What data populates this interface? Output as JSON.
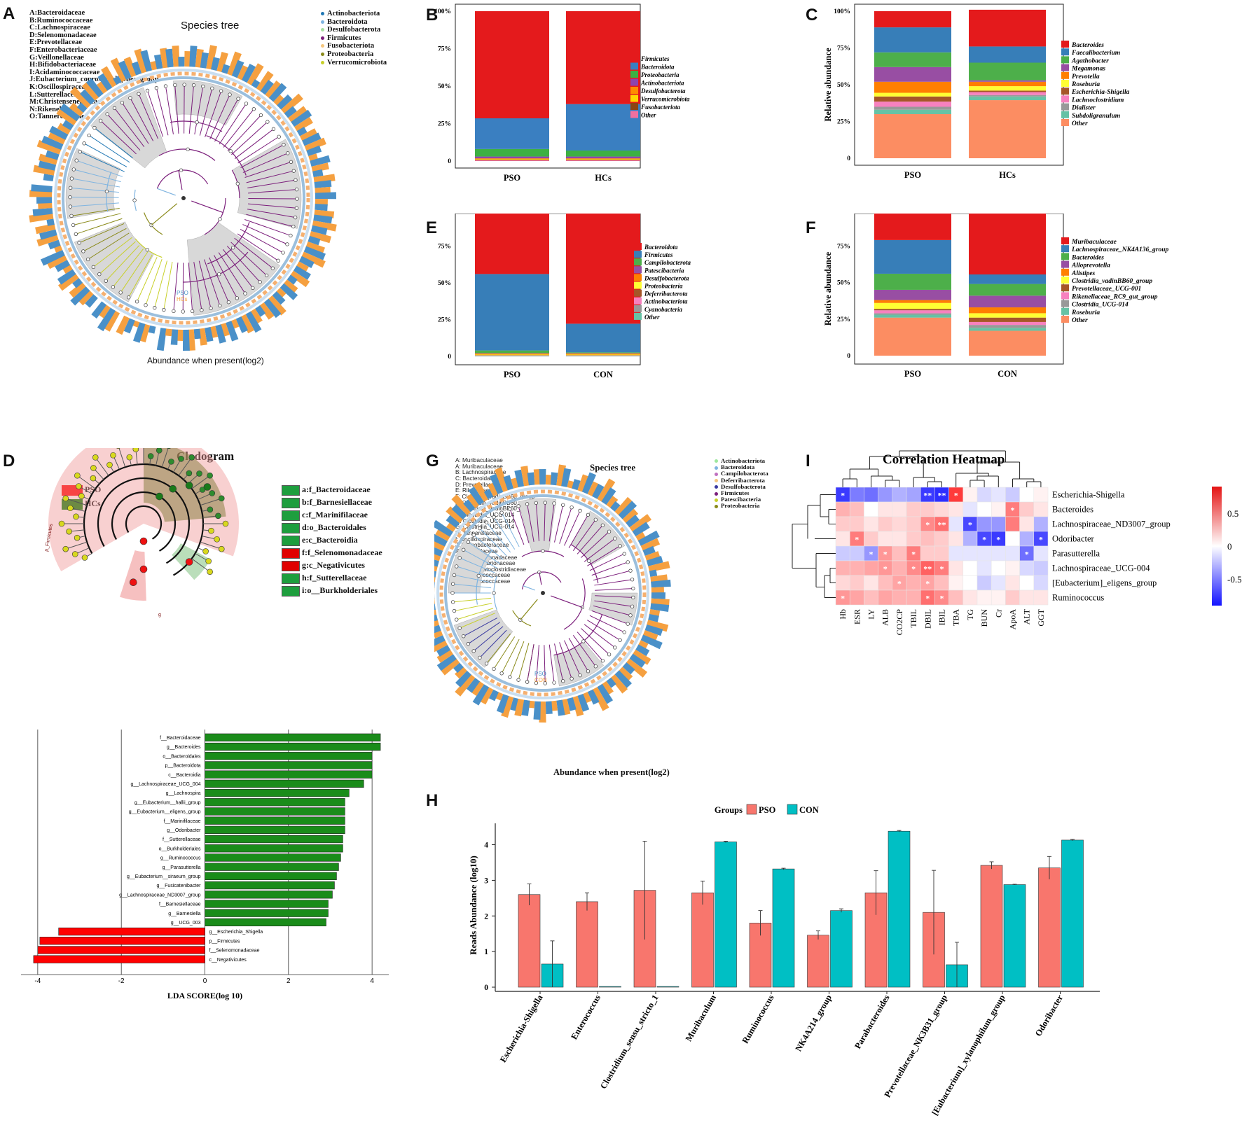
{
  "panel_labels": {
    "A": "A",
    "B": "B",
    "C": "C",
    "D": "D",
    "E": "E",
    "F": "F",
    "G": "G",
    "H": "H",
    "I": "I"
  },
  "panel_a": {
    "title": "Species tree",
    "footer": "Abundance when present(log2)",
    "group_pso": "PSO",
    "group_hcs": "HCs",
    "family_key": [
      "A:Bacteroidaceae",
      "B:Ruminococcaceae",
      "C:Lachnospiraceae",
      "D:Selenomonadaceae",
      "E:Prevotellaceae",
      "F:Enterobacteriaceae",
      "G:Veillonellaceae",
      "H:Bifidobacteriaceae",
      "I:Acidaminococcaceae",
      "J:Eubacterium_coprostanoligenes_group",
      "K:Oscillospiraceae",
      "L:Sutterellaceae",
      "M:Christensenellaceae",
      "N:Rikenellaceae",
      "O:Tannerellaceae"
    ],
    "phyla": [
      {
        "name": "Actinobacteriota",
        "color": "#1f77b4"
      },
      {
        "name": "Bacteroidota",
        "color": "#7fb4e0"
      },
      {
        "name": "Desulfobacterota",
        "color": "#a8e0a0"
      },
      {
        "name": "Firmicutes",
        "color": "#7b1e7b"
      },
      {
        "name": "Fusobacteriota",
        "color": "#f5c77e"
      },
      {
        "name": "Proteobacteria",
        "color": "#8a8a1a"
      },
      {
        "name": "Verrucomicrobiota",
        "color": "#c8d02a"
      }
    ]
  },
  "panel_g": {
    "title": "Species tree",
    "footer": "Abundance when present(log2)",
    "group_pso": "PSO",
    "group_con": "CON",
    "family_key": [
      "A: Muribaculaceae",
      "A: Muribaculaceae",
      "B: Lachnospiraceae",
      "C: Bacteroidaceae",
      "D: Prevotellaceae",
      "E: Rikenellaceae",
      "F: Clostridia_vadinBB60_group",
      "F: Clostridia_vadinBB60_group",
      "F: Clostridia_vadinBB60_group",
      "G: Clostridia_UCG-014",
      "G: Clostridia_UCG-014",
      "G: Clostridia_UCG-014",
      "H: Tannerellaceae",
      "I: Oscillospiraceae",
      "J: Helicobacteraceae",
      "K: Marinifilaceae",
      "L: Saccharimonadaceae",
      "M: Desulfovibrionaceae",
      "N: Erysipelatoclostridiaceae",
      "O: Ruminococcaceae",
      "O: Ruminococcaceae"
    ],
    "phyla": [
      {
        "name": "Actinobacteriota",
        "color": "#9ee89e"
      },
      {
        "name": "Bacteroidota",
        "color": "#7fb4e0"
      },
      {
        "name": "Campilobacterota",
        "color": "#c070c0"
      },
      {
        "name": "Deferribacterota",
        "color": "#f5c77e"
      },
      {
        "name": "Desulfobacterota",
        "color": "#3a3aa0"
      },
      {
        "name": "Firmicutes",
        "color": "#7b1e7b"
      },
      {
        "name": "Patescibacteria",
        "color": "#c8d02a"
      },
      {
        "name": "Proteobacteria",
        "color": "#8a8a1a"
      }
    ]
  },
  "panel_d": {
    "title": "Cladogram",
    "group_legend": [
      {
        "name": "PSO",
        "color": "#ff0000"
      },
      {
        "name": "HCs",
        "color": "#008000"
      }
    ],
    "taxa_legend": [
      {
        "key": "a:f_Bacteroidaceae",
        "color": "#1e9e3e"
      },
      {
        "key": "b:f_Barnesiellaceae",
        "color": "#1e9e3e"
      },
      {
        "key": "c:f_Marinifilaceae",
        "color": "#1e9e3e"
      },
      {
        "key": "d:o_Bacteroidales",
        "color": "#1e9e3e"
      },
      {
        "key": "e:c_Bacteroidia",
        "color": "#1e9e3e"
      },
      {
        "key": "f:f_Selenomonadaceae",
        "color": "#e00000"
      },
      {
        "key": "g:c_Negativicutes",
        "color": "#e00000"
      },
      {
        "key": "h:f_Sutterellaceae",
        "color": "#1e9e3e"
      },
      {
        "key": "i:o__Burkholderiales",
        "color": "#1e9e3e"
      }
    ],
    "clade_labels": {
      "bacteroidota": "p_Bacteroidota",
      "firmicutes": "p_Firmicutes",
      "g": "g"
    }
  },
  "chart_data": [
    {
      "id": "B",
      "type": "bar",
      "stacked": true,
      "categories": [
        "PSO",
        "HCs"
      ],
      "ylabel": "Relative abundance",
      "yticks": [
        "0",
        "25%",
        "50%",
        "75%",
        "100%"
      ],
      "ylim": [
        0,
        1
      ],
      "series": [
        {
          "name": "Other",
          "color": "#f070a0",
          "values": [
            0.005,
            0.005
          ]
        },
        {
          "name": "Fusobacteriota",
          "color": "#8b4513",
          "values": [
            0.004,
            0.004
          ]
        },
        {
          "name": "Verrucomicrobiota",
          "color": "#ffd700",
          "values": [
            0.004,
            0.004
          ]
        },
        {
          "name": "Desulfobacterota",
          "color": "#ff8c00",
          "values": [
            0.005,
            0.005
          ]
        },
        {
          "name": "Actinobacteriota",
          "color": "#8e44ad",
          "values": [
            0.012,
            0.012
          ]
        },
        {
          "name": "Proteobacteria",
          "color": "#3cb043",
          "values": [
            0.05,
            0.04
          ]
        },
        {
          "name": "Bacteroidota",
          "color": "#3a7fc1",
          "values": [
            0.205,
            0.31
          ]
        },
        {
          "name": "Firmicutes",
          "color": "#e41a1c",
          "values": [
            0.715,
            0.62
          ]
        }
      ]
    },
    {
      "id": "C",
      "type": "bar",
      "stacked": true,
      "categories": [
        "PSO",
        "HCs"
      ],
      "ylabel": "Relative abundance",
      "yticks": [
        "0",
        "25%",
        "50%",
        "75%",
        "100%"
      ],
      "ylim": [
        0,
        1
      ],
      "series": [
        {
          "name": "Other",
          "color": "#fc8d62",
          "values": [
            0.3,
            0.395
          ]
        },
        {
          "name": "Subdoligranulum",
          "color": "#66c2a5",
          "values": [
            0.03,
            0.025
          ]
        },
        {
          "name": "Dialister",
          "color": "#999999",
          "values": [
            0.02,
            0.01
          ]
        },
        {
          "name": "Lachnoclostridium",
          "color": "#f781bf",
          "values": [
            0.035,
            0.02
          ]
        },
        {
          "name": "Escherichia-Shigella",
          "color": "#a65628",
          "values": [
            0.035,
            0.01
          ]
        },
        {
          "name": "Roseburia",
          "color": "#ffff33",
          "values": [
            0.025,
            0.03
          ]
        },
        {
          "name": "Prevotella",
          "color": "#ff7f00",
          "values": [
            0.075,
            0.03
          ]
        },
        {
          "name": "Megamonas",
          "color": "#984ea3",
          "values": [
            0.1,
            0.01
          ]
        },
        {
          "name": "Agathobacter",
          "color": "#4daf4a",
          "values": [
            0.1,
            0.12
          ]
        },
        {
          "name": "Faecalibacterium",
          "color": "#377eb8",
          "values": [
            0.17,
            0.11
          ]
        },
        {
          "name": "Bacteroides",
          "color": "#e41a1c",
          "values": [
            0.11,
            0.25
          ]
        }
      ]
    },
    {
      "id": "E",
      "type": "bar",
      "stacked": true,
      "categories": [
        "PSO",
        "CON"
      ],
      "ylabel": "Relative abundance",
      "yticks": [
        "0",
        "25%",
        "50%",
        "75%",
        "100%"
      ],
      "ylim": [
        0,
        1
      ],
      "series": [
        {
          "name": "Other",
          "color": "#66c2a5",
          "values": [
            0.002,
            0.002
          ]
        },
        {
          "name": "Cyanobacteria",
          "color": "#999999",
          "values": [
            0.002,
            0.002
          ]
        },
        {
          "name": "Actinobacteriota",
          "color": "#f781bf",
          "values": [
            0.002,
            0.002
          ]
        },
        {
          "name": "Deferribacterota",
          "color": "#a65628",
          "values": [
            0.002,
            0.002
          ]
        },
        {
          "name": "Proteobacteria",
          "color": "#ffff33",
          "values": [
            0.004,
            0.004
          ]
        },
        {
          "name": "Desulfobacterota",
          "color": "#ff7f00",
          "values": [
            0.008,
            0.008
          ]
        },
        {
          "name": "Patescibacteria",
          "color": "#984ea3",
          "values": [
            0.002,
            0.002
          ]
        },
        {
          "name": "Campilobacterota",
          "color": "#4daf4a",
          "values": [
            0.018,
            0.005
          ]
        },
        {
          "name": "Firmicutes",
          "color": "#377eb8",
          "values": [
            0.52,
            0.195
          ]
        },
        {
          "name": "Bacteroidota",
          "color": "#e41a1c",
          "values": [
            0.44,
            0.778
          ]
        }
      ]
    },
    {
      "id": "F",
      "type": "bar",
      "stacked": true,
      "categories": [
        "PSO",
        "CON"
      ],
      "ylabel": "Relative abundance",
      "yticks": [
        "0",
        "25%",
        "50%",
        "75%",
        "100%"
      ],
      "ylim": [
        0,
        1
      ],
      "series": [
        {
          "name": "Other",
          "color": "#fc8d62",
          "values": [
            0.26,
            0.17
          ]
        },
        {
          "name": "Roseburia",
          "color": "#66c2a5",
          "values": [
            0.02,
            0.02
          ]
        },
        {
          "name": "Clostridia_UCG-014",
          "color": "#999999",
          "values": [
            0.01,
            0.02
          ]
        },
        {
          "name": "Rikenellaceae_RC9_gut_group",
          "color": "#f781bf",
          "values": [
            0.02,
            0.02
          ]
        },
        {
          "name": "Prevotellaceae_UCG-001",
          "color": "#a65628",
          "values": [
            0.01,
            0.03
          ]
        },
        {
          "name": "Clostridia_vadinBB60_group",
          "color": "#ffff33",
          "values": [
            0.04,
            0.03
          ]
        },
        {
          "name": "Alistipes",
          "color": "#ff7f00",
          "values": [
            0.02,
            0.04
          ]
        },
        {
          "name": "Alloprevotella",
          "color": "#984ea3",
          "values": [
            0.07,
            0.08
          ]
        },
        {
          "name": "Bacteroides",
          "color": "#4daf4a",
          "values": [
            0.11,
            0.08
          ]
        },
        {
          "name": "Lachnospiraceae_NK4A136_group",
          "color": "#377eb8",
          "values": [
            0.23,
            0.065
          ]
        },
        {
          "name": "Muribaculaceae",
          "color": "#e41a1c",
          "values": [
            0.21,
            0.445
          ]
        }
      ]
    },
    {
      "id": "D-LDA",
      "type": "bar",
      "orientation": "horizontal",
      "xlabel": "LDA SCORE(log 10)",
      "xticks": [
        -4,
        -2,
        0,
        2,
        4
      ],
      "xlim": [
        -4.4,
        4.4
      ],
      "categories": [
        "f__Bacteroidaceae",
        "g__Bacteroides",
        "o__Bacteroidales",
        "p__Bacteroidota",
        "c__Bacteroidia",
        "g__Lachnospiraceae_UCG_004",
        "g__Lachnospira",
        "g__Eubacterium__hallii_group",
        "g__Eubacterium__eligens_group",
        "f__Marinifilaceae",
        "g__Odoribacter",
        "f__Sutterellaceae",
        "o__Burkholderiales",
        "g__Ruminococcus",
        "g__Parasutterella",
        "g__Eubacterium__siraeum_group",
        "g__Fusicatenibacter",
        "g__Lachnospiraceae_ND3007_group",
        "f__Barnesiellaceae",
        "g__Barnesiella",
        "g__UCG_003",
        "g__Escherichia_Shigella",
        "p__Firmicutes",
        "f__Selenomonadaceae",
        "c__Negativicutes"
      ],
      "values": [
        4.2,
        4.2,
        4.0,
        4.0,
        4.0,
        3.8,
        3.45,
        3.35,
        3.35,
        3.35,
        3.35,
        3.3,
        3.3,
        3.25,
        3.2,
        3.15,
        3.1,
        3.05,
        2.95,
        2.95,
        2.9,
        -3.5,
        -3.95,
        -4.0,
        -4.1
      ],
      "colors": {
        "positive": "#1a8c1a",
        "negative": "#ff0000"
      }
    },
    {
      "id": "H",
      "type": "bar",
      "grouped": true,
      "legend_title": "Groups",
      "ylabel": "Reads Abundance (log10)",
      "yticks": [
        0,
        1,
        2,
        3,
        4
      ],
      "ylim": [
        0,
        4.6
      ],
      "categories": [
        "Escherichia-Shigella",
        "Enterococcus",
        "Clostridium_sensu_stricto_1",
        "Muribaculum",
        "Ruminococcus",
        "NK4A214_group",
        "Parabacteroides",
        "Prevotellaceae_NK3B31_group",
        "[Eubacterium]_xylanophilum_group",
        "Odoribacter"
      ],
      "series": [
        {
          "name": "PSO",
          "color": "#f8766d",
          "values": [
            2.6,
            2.4,
            2.72,
            2.65,
            1.8,
            1.46,
            2.65,
            2.1,
            3.42,
            3.35
          ],
          "errors": [
            0.3,
            0.25,
            1.38,
            0.33,
            0.35,
            0.12,
            0.62,
            1.18,
            0.1,
            0.32
          ]
        },
        {
          "name": "CON",
          "color": "#00bfc4",
          "values": [
            0.65,
            0.02,
            0.02,
            4.08,
            3.32,
            2.15,
            4.38,
            0.63,
            2.88,
            4.13
          ],
          "errors": [
            0.65,
            0,
            0,
            0.02,
            0.02,
            0.05,
            0.02,
            0.63,
            0.01,
            0.02
          ]
        }
      ]
    },
    {
      "id": "I",
      "type": "heatmap",
      "title": "Correlation Heatmap",
      "columns": [
        "Hb",
        "ESR",
        "LY",
        "ALB",
        "CO2CP",
        "TBIL",
        "DBIL",
        "IBIL",
        "TBA",
        "TG",
        "BUN",
        "Cr",
        "ApoA",
        "ALT",
        "GGT"
      ],
      "rows": [
        "Escherichia-Shigella",
        "Bacteroides",
        "Lachnospiraceae_ND3007_group",
        "Odoribacter",
        "Parasutterella",
        "Lachnospiraceae_UCG-004",
        "[Eubacterium]_eligens_group",
        "Ruminococcus"
      ],
      "values": [
        [
          -0.75,
          -0.5,
          -0.55,
          -0.4,
          -0.3,
          -0.35,
          -0.75,
          -0.8,
          0.75,
          0.05,
          -0.15,
          -0.1,
          -0.2,
          0.0,
          0.05
        ],
        [
          0.3,
          0.25,
          0.0,
          0.1,
          0.1,
          0.2,
          0.2,
          0.15,
          0.1,
          -0.1,
          0.0,
          0.05,
          0.5,
          0.2,
          0.1
        ],
        [
          0.2,
          0.2,
          0.1,
          0.2,
          0.15,
          0.2,
          0.45,
          0.55,
          -0.1,
          -0.7,
          -0.4,
          -0.4,
          0.5,
          0.1,
          -0.3
        ],
        [
          0.1,
          0.5,
          0.2,
          0.1,
          0.1,
          0.2,
          0.25,
          0.2,
          0.1,
          -0.3,
          -0.7,
          -0.75,
          0.0,
          -0.3,
          -0.7
        ],
        [
          -0.2,
          -0.2,
          -0.4,
          0.4,
          0.25,
          0.5,
          0.2,
          0.2,
          -0.1,
          -0.1,
          -0.1,
          -0.1,
          -0.1,
          -0.55,
          -0.1
        ],
        [
          0.3,
          0.3,
          0.35,
          0.4,
          0.3,
          0.45,
          0.6,
          0.5,
          0.1,
          0.0,
          -0.1,
          0.0,
          0.05,
          -0.15,
          -0.2
        ],
        [
          0.15,
          0.2,
          0.1,
          0.25,
          0.35,
          0.3,
          0.35,
          0.25,
          0.05,
          0.0,
          -0.2,
          -0.1,
          0.1,
          0.0,
          -0.15
        ],
        [
          0.4,
          0.35,
          0.25,
          0.35,
          0.3,
          0.3,
          0.55,
          0.45,
          0.25,
          0.1,
          0.05,
          0.05,
          0.2,
          0.1,
          0.1
        ]
      ],
      "stars": [
        [
          "*",
          "",
          "",
          "",
          "",
          "",
          "**",
          "**",
          "*",
          "",
          "",
          "",
          "",
          "",
          ""
        ],
        [
          "",
          "",
          "",
          "",
          "",
          "",
          "",
          "",
          "",
          "",
          "",
          "",
          "*",
          "",
          ""
        ],
        [
          "",
          "",
          "",
          "",
          "",
          "",
          "*",
          "**",
          "",
          "*",
          "",
          "",
          "",
          "",
          ""
        ],
        [
          "",
          "*",
          "",
          "",
          "",
          "",
          "",
          "",
          "",
          "",
          "*",
          "*",
          "",
          "",
          "*"
        ],
        [
          "",
          "",
          "*",
          "*",
          "",
          "*",
          "",
          "",
          "",
          "",
          "",
          "",
          "",
          "*",
          ""
        ],
        [
          "",
          "",
          "",
          "*",
          "",
          "*",
          "**",
          "*",
          "",
          "",
          "",
          "",
          "",
          "",
          ""
        ],
        [
          "",
          "",
          "",
          "",
          "*",
          "",
          "*",
          "",
          "",
          "",
          "",
          "",
          "",
          "",
          ""
        ],
        [
          "*",
          "",
          "",
          "",
          "",
          "",
          "*",
          "*",
          "",
          "",
          "",
          "",
          "",
          "",
          ""
        ]
      ],
      "colorbar_ticks": [
        "0.5",
        "0",
        "-0.5"
      ],
      "colorbar_range": [
        -0.9,
        0.9
      ]
    }
  ]
}
